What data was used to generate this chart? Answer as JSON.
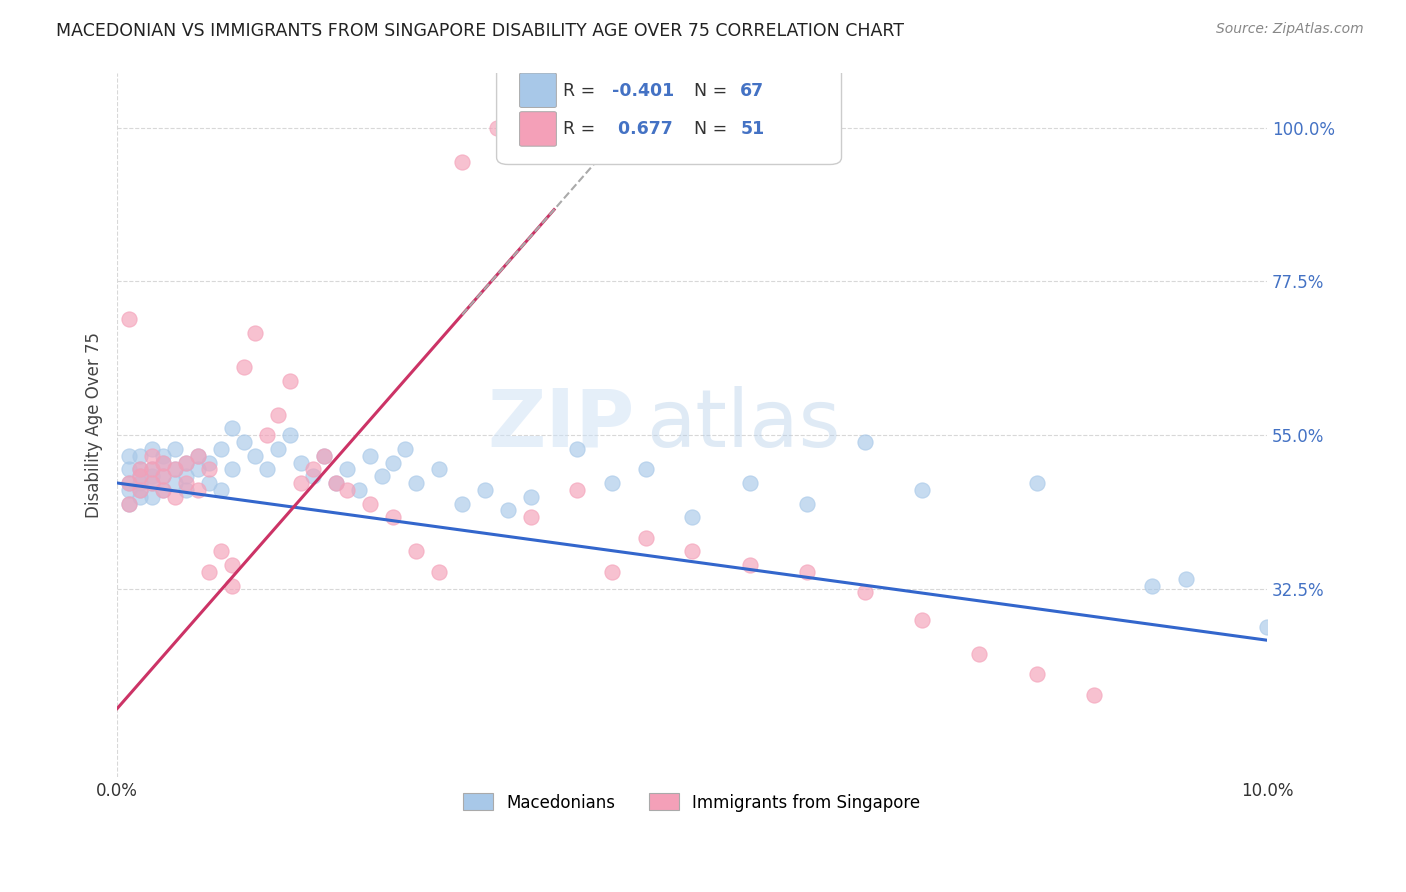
{
  "title": "MACEDONIAN VS IMMIGRANTS FROM SINGAPORE DISABILITY AGE OVER 75 CORRELATION CHART",
  "source": "Source: ZipAtlas.com",
  "ylabel": "Disability Age Over 75",
  "legend_labels": [
    "Macedonians",
    "Immigrants from Singapore"
  ],
  "blue_color": "#a8c8e8",
  "pink_color": "#f4a0b8",
  "blue_line_color": "#3366cc",
  "pink_line_color": "#cc3366",
  "watermark_zip": "ZIP",
  "watermark_atlas": "atlas",
  "xlim": [
    0.0,
    0.1
  ],
  "ylim": [
    0.05,
    1.08
  ],
  "yticks": [
    0.325,
    0.55,
    0.775,
    1.0
  ],
  "ytick_labels": [
    "32.5%",
    "55.0%",
    "77.5%",
    "100.0%"
  ],
  "xtick_vals": [
    0.0,
    0.1
  ],
  "xtick_labels": [
    "0.0%",
    "10.0%"
  ],
  "grid_color": "#d8d8d8",
  "bg_color": "#ffffff",
  "blue_points": [
    [
      0.001,
      0.48
    ],
    [
      0.001,
      0.5
    ],
    [
      0.001,
      0.45
    ],
    [
      0.001,
      0.47
    ],
    [
      0.001,
      0.52
    ],
    [
      0.002,
      0.5
    ],
    [
      0.002,
      0.48
    ],
    [
      0.002,
      0.46
    ],
    [
      0.002,
      0.49
    ],
    [
      0.002,
      0.52
    ],
    [
      0.002,
      0.47
    ],
    [
      0.003,
      0.5
    ],
    [
      0.003,
      0.48
    ],
    [
      0.003,
      0.53
    ],
    [
      0.003,
      0.46
    ],
    [
      0.003,
      0.49
    ],
    [
      0.004,
      0.51
    ],
    [
      0.004,
      0.49
    ],
    [
      0.004,
      0.52
    ],
    [
      0.004,
      0.47
    ],
    [
      0.005,
      0.5
    ],
    [
      0.005,
      0.48
    ],
    [
      0.005,
      0.53
    ],
    [
      0.006,
      0.51
    ],
    [
      0.006,
      0.49
    ],
    [
      0.006,
      0.47
    ],
    [
      0.007,
      0.52
    ],
    [
      0.007,
      0.5
    ],
    [
      0.008,
      0.48
    ],
    [
      0.008,
      0.51
    ],
    [
      0.009,
      0.53
    ],
    [
      0.009,
      0.47
    ],
    [
      0.01,
      0.56
    ],
    [
      0.01,
      0.5
    ],
    [
      0.011,
      0.54
    ],
    [
      0.012,
      0.52
    ],
    [
      0.013,
      0.5
    ],
    [
      0.014,
      0.53
    ],
    [
      0.015,
      0.55
    ],
    [
      0.016,
      0.51
    ],
    [
      0.017,
      0.49
    ],
    [
      0.018,
      0.52
    ],
    [
      0.019,
      0.48
    ],
    [
      0.02,
      0.5
    ],
    [
      0.021,
      0.47
    ],
    [
      0.022,
      0.52
    ],
    [
      0.023,
      0.49
    ],
    [
      0.024,
      0.51
    ],
    [
      0.025,
      0.53
    ],
    [
      0.026,
      0.48
    ],
    [
      0.028,
      0.5
    ],
    [
      0.03,
      0.45
    ],
    [
      0.032,
      0.47
    ],
    [
      0.034,
      0.44
    ],
    [
      0.036,
      0.46
    ],
    [
      0.04,
      0.53
    ],
    [
      0.043,
      0.48
    ],
    [
      0.046,
      0.5
    ],
    [
      0.05,
      0.43
    ],
    [
      0.055,
      0.48
    ],
    [
      0.06,
      0.45
    ],
    [
      0.065,
      0.54
    ],
    [
      0.07,
      0.47
    ],
    [
      0.08,
      0.48
    ],
    [
      0.09,
      0.33
    ],
    [
      0.093,
      0.34
    ],
    [
      0.1,
      0.27
    ]
  ],
  "pink_points": [
    [
      0.001,
      0.48
    ],
    [
      0.001,
      0.72
    ],
    [
      0.001,
      0.45
    ],
    [
      0.002,
      0.47
    ],
    [
      0.002,
      0.5
    ],
    [
      0.002,
      0.49
    ],
    [
      0.003,
      0.5
    ],
    [
      0.003,
      0.48
    ],
    [
      0.003,
      0.52
    ],
    [
      0.004,
      0.47
    ],
    [
      0.004,
      0.51
    ],
    [
      0.004,
      0.49
    ],
    [
      0.005,
      0.5
    ],
    [
      0.005,
      0.46
    ],
    [
      0.006,
      0.48
    ],
    [
      0.006,
      0.51
    ],
    [
      0.007,
      0.52
    ],
    [
      0.007,
      0.47
    ],
    [
      0.008,
      0.5
    ],
    [
      0.008,
      0.35
    ],
    [
      0.009,
      0.38
    ],
    [
      0.01,
      0.36
    ],
    [
      0.01,
      0.33
    ],
    [
      0.011,
      0.65
    ],
    [
      0.012,
      0.7
    ],
    [
      0.013,
      0.55
    ],
    [
      0.014,
      0.58
    ],
    [
      0.015,
      0.63
    ],
    [
      0.016,
      0.48
    ],
    [
      0.017,
      0.5
    ],
    [
      0.018,
      0.52
    ],
    [
      0.019,
      0.48
    ],
    [
      0.02,
      0.47
    ],
    [
      0.022,
      0.45
    ],
    [
      0.024,
      0.43
    ],
    [
      0.026,
      0.38
    ],
    [
      0.028,
      0.35
    ],
    [
      0.03,
      0.95
    ],
    [
      0.033,
      1.0
    ],
    [
      0.036,
      0.43
    ],
    [
      0.04,
      0.47
    ],
    [
      0.043,
      0.35
    ],
    [
      0.046,
      0.4
    ],
    [
      0.05,
      0.38
    ],
    [
      0.055,
      0.36
    ],
    [
      0.06,
      0.35
    ],
    [
      0.065,
      0.32
    ],
    [
      0.07,
      0.28
    ],
    [
      0.075,
      0.23
    ],
    [
      0.08,
      0.2
    ],
    [
      0.085,
      0.17
    ]
  ],
  "blue_line_x0": 0.0,
  "blue_line_y0": 0.48,
  "blue_line_x1": 0.1,
  "blue_line_y1": 0.25,
  "pink_line_x0": 0.0,
  "pink_line_y0": 0.15,
  "pink_line_x1": 0.038,
  "pink_line_y1": 0.88,
  "dashed_line_x0": 0.03,
  "dashed_line_y0": 0.85,
  "dashed_line_x1": 0.045,
  "dashed_line_y1": 1.0
}
